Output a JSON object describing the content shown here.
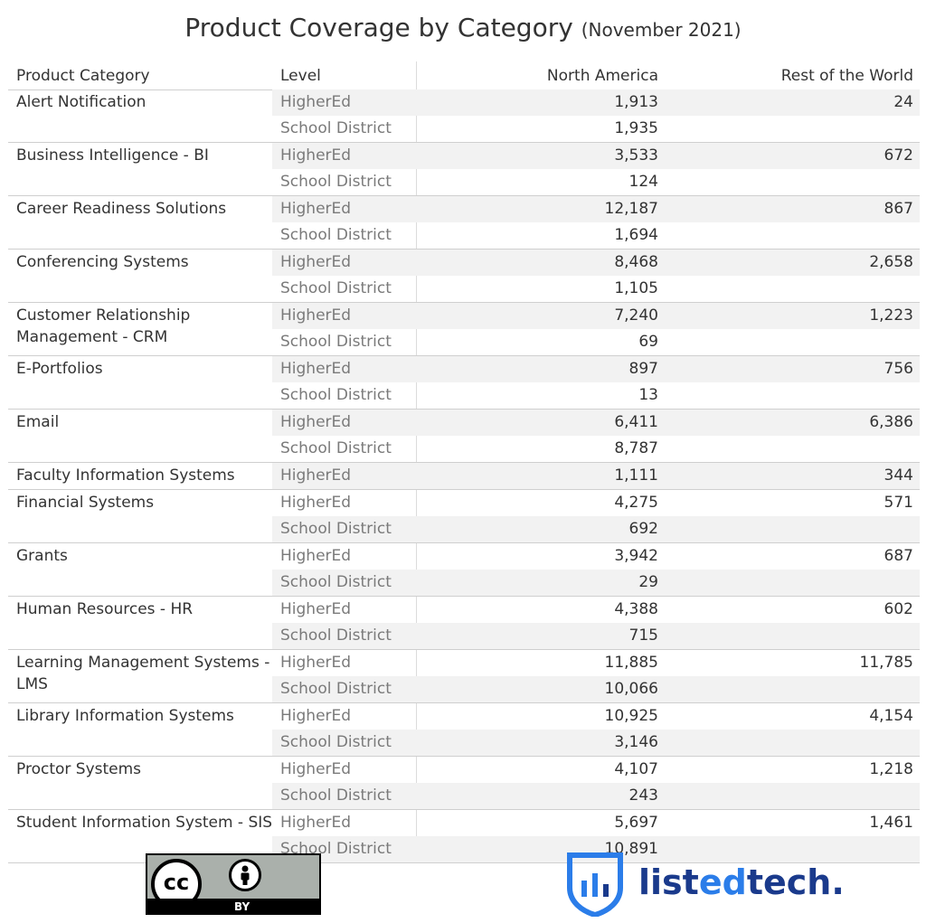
{
  "title": "Product Coverage by Category",
  "subtitle": "(November 2021)",
  "headers": {
    "category": "Product Category",
    "level": "Level",
    "north_america": "North America",
    "rest_of_world": "Rest of the World"
  },
  "chart_data": {
    "type": "table",
    "title": "Product Coverage by Category (November 2021)",
    "columns": [
      "Product Category",
      "Level",
      "North America",
      "Rest of the World"
    ],
    "groups": [
      {
        "category": "Alert Notification",
        "rows": [
          {
            "level": "HigherEd",
            "north_america": "1,913",
            "rest_of_world": "24"
          },
          {
            "level": "School District",
            "north_america": "1,935",
            "rest_of_world": ""
          }
        ]
      },
      {
        "category": "Business Intelligence - BI",
        "rows": [
          {
            "level": "HigherEd",
            "north_america": "3,533",
            "rest_of_world": "672"
          },
          {
            "level": "School District",
            "north_america": "124",
            "rest_of_world": ""
          }
        ]
      },
      {
        "category": "Career Readiness Solutions",
        "rows": [
          {
            "level": "HigherEd",
            "north_america": "12,187",
            "rest_of_world": "867"
          },
          {
            "level": "School District",
            "north_america": "1,694",
            "rest_of_world": ""
          }
        ]
      },
      {
        "category": "Conferencing Systems",
        "rows": [
          {
            "level": "HigherEd",
            "north_america": "8,468",
            "rest_of_world": "2,658"
          },
          {
            "level": "School District",
            "north_america": "1,105",
            "rest_of_world": ""
          }
        ]
      },
      {
        "category": "Customer Relationship Management - CRM",
        "rows": [
          {
            "level": "HigherEd",
            "north_america": "7,240",
            "rest_of_world": "1,223"
          },
          {
            "level": "School District",
            "north_america": "69",
            "rest_of_world": ""
          }
        ]
      },
      {
        "category": "E-Portfolios",
        "rows": [
          {
            "level": "HigherEd",
            "north_america": "897",
            "rest_of_world": "756"
          },
          {
            "level": "School District",
            "north_america": "13",
            "rest_of_world": ""
          }
        ]
      },
      {
        "category": "Email",
        "rows": [
          {
            "level": "HigherEd",
            "north_america": "6,411",
            "rest_of_world": "6,386"
          },
          {
            "level": "School District",
            "north_america": "8,787",
            "rest_of_world": ""
          }
        ]
      },
      {
        "category": "Faculty Information Systems",
        "rows": [
          {
            "level": "HigherEd",
            "north_america": "1,111",
            "rest_of_world": "344"
          }
        ]
      },
      {
        "category": "Financial Systems",
        "rows": [
          {
            "level": "HigherEd",
            "north_america": "4,275",
            "rest_of_world": "571"
          },
          {
            "level": "School District",
            "north_america": "692",
            "rest_of_world": ""
          }
        ]
      },
      {
        "category": "Grants",
        "rows": [
          {
            "level": "HigherEd",
            "north_america": "3,942",
            "rest_of_world": "687"
          },
          {
            "level": "School District",
            "north_america": "29",
            "rest_of_world": ""
          }
        ]
      },
      {
        "category": "Human Resources - HR",
        "rows": [
          {
            "level": "HigherEd",
            "north_america": "4,388",
            "rest_of_world": "602"
          },
          {
            "level": "School District",
            "north_america": "715",
            "rest_of_world": ""
          }
        ]
      },
      {
        "category": "Learning Management Systems - LMS",
        "rows": [
          {
            "level": "HigherEd",
            "north_america": "11,885",
            "rest_of_world": "11,785"
          },
          {
            "level": "School District",
            "north_america": "10,066",
            "rest_of_world": ""
          }
        ]
      },
      {
        "category": "Library Information Systems",
        "rows": [
          {
            "level": "HigherEd",
            "north_america": "10,925",
            "rest_of_world": "4,154"
          },
          {
            "level": "School District",
            "north_america": "3,146",
            "rest_of_world": ""
          }
        ]
      },
      {
        "category": "Proctor Systems",
        "rows": [
          {
            "level": "HigherEd",
            "north_america": "4,107",
            "rest_of_world": "1,218"
          },
          {
            "level": "School District",
            "north_america": "243",
            "rest_of_world": ""
          }
        ]
      },
      {
        "category": "Student Information System - SIS",
        "rows": [
          {
            "level": "HigherEd",
            "north_america": "5,697",
            "rest_of_world": "1,461"
          },
          {
            "level": "School District",
            "north_america": "10,891",
            "rest_of_world": ""
          }
        ]
      }
    ]
  },
  "logos": {
    "cc": {
      "text": "cc",
      "label": "BY",
      "icon": "creative-commons-by-icon",
      "color": "#aab0ab"
    },
    "listedtech": {
      "text_a": "list",
      "text_b": "ed",
      "text_c": "tech.",
      "icon": "listedtech-shield-icon",
      "color_dark": "#1a3a8c",
      "color_light": "#2b7de9"
    }
  }
}
